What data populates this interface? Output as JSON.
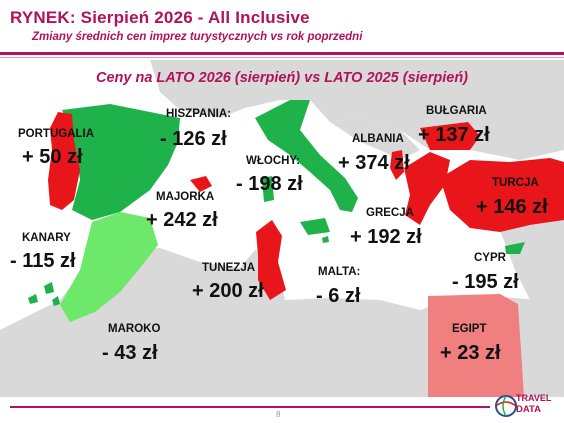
{
  "header": {
    "title": "RYNEK: Sierpień 2026 - All Inclusive",
    "subtitle": "Zmiany średnich cen imprez turystycznych vs rok poprzedni"
  },
  "map_title": "Ceny na LATO 2026 (sierpień) vs  LATO 2025 (sierpień)",
  "colors": {
    "accent": "#b0125b",
    "increase": "#e8161a",
    "decrease": "#1fb24a",
    "decrease_light": "#6ee86a",
    "egypt": "#f08080",
    "land": "#d9d9d9"
  },
  "countries": {
    "portugalia": {
      "name": "PORTUGALIA",
      "value": "+ 50 zł"
    },
    "hiszpania": {
      "name": "HISZPANIA:",
      "value": "- 126 zł"
    },
    "wlochy": {
      "name": "WŁOCHY:",
      "value": "- 198 zł"
    },
    "albania": {
      "name": "ALBANIA",
      "value": "+ 374 zł"
    },
    "bulgaria": {
      "name": "BUŁGARIA",
      "value": "+ 137 zł"
    },
    "majorka": {
      "name": "MAJORKA",
      "value": "+ 242 zł"
    },
    "turcja": {
      "name": "TURCJA",
      "value": "+ 146 zł"
    },
    "grecja": {
      "name": "GRECJA",
      "value": "+ 192 zł"
    },
    "kanary": {
      "name": "KANARY",
      "value": "- 115 zł"
    },
    "tunezja": {
      "name": "TUNEZJA",
      "value": "+ 200 zł"
    },
    "malta": {
      "name": "MALTA:",
      "value": "- 6 zł"
    },
    "cypr": {
      "name": "CYPR",
      "value": "- 195 zł"
    },
    "maroko": {
      "name": "MAROKO",
      "value": "- 43 zł"
    },
    "egipt": {
      "name": "EGIPT",
      "value": "+ 23 zł"
    }
  },
  "footer": {
    "page": "8",
    "logo_line1": "TRAVEL",
    "logo_line2": "DATA"
  }
}
